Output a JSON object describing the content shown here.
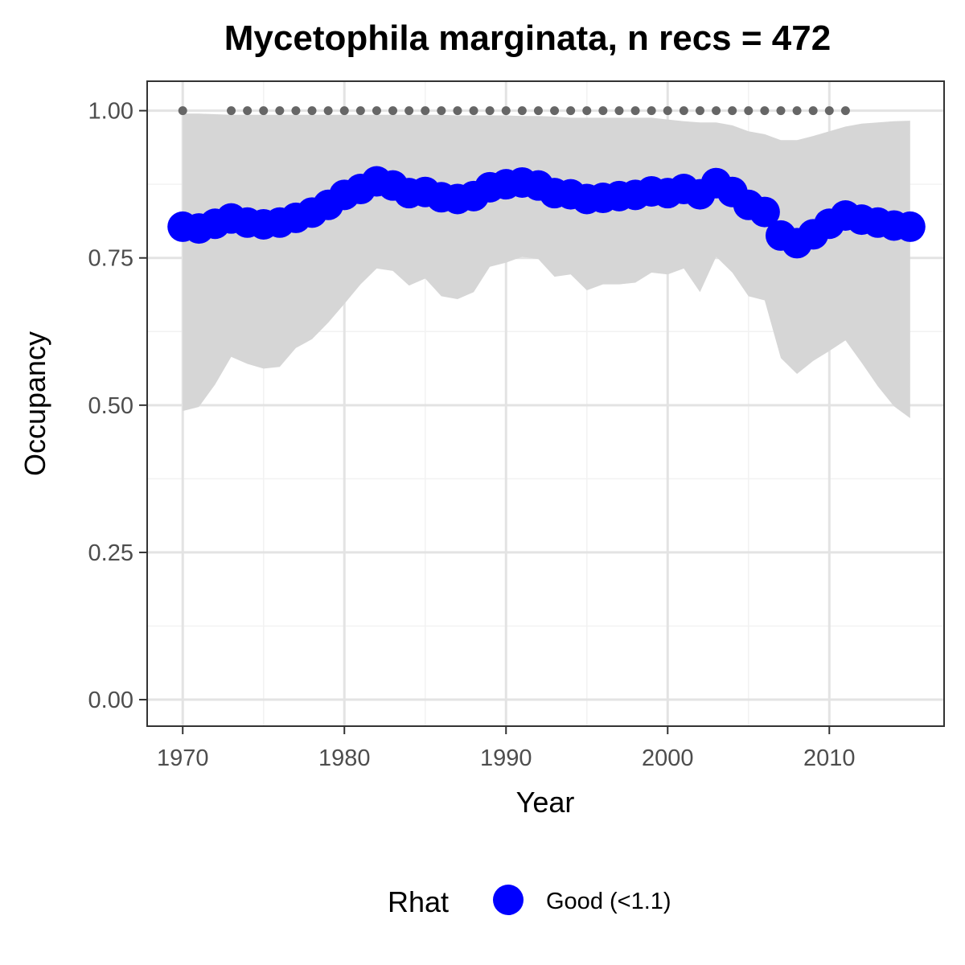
{
  "chart_data": {
    "type": "line",
    "title": "Mycetophila marginata, n recs = 472",
    "xlabel": "Year",
    "ylabel": "Occupancy",
    "xlim": [
      1967.8,
      2017.1
    ],
    "ylim": [
      -0.045,
      1.05
    ],
    "x_ticks": [
      1970,
      1980,
      1990,
      2000,
      2010
    ],
    "x_tick_labels": [
      "1970",
      "1980",
      "1990",
      "2000",
      "2010"
    ],
    "y_ticks": [
      0,
      0.25,
      0.5,
      0.75,
      1.0
    ],
    "y_tick_labels": [
      "0.00",
      "0.25",
      "0.50",
      "0.75",
      "1.00"
    ],
    "grid": true,
    "colors": {
      "series": "#0000ff",
      "ribbon": "#d6d6d6",
      "record_dots": "#666666",
      "grid_major": "#e3e3e3",
      "grid_minor": "#f2f2f2",
      "panel_border": "#333333"
    },
    "series": [
      {
        "x": [
          1970,
          1971,
          1972,
          1973,
          1974,
          1975,
          1976,
          1977,
          1978,
          1979,
          1980,
          1981,
          1982,
          1983,
          1984,
          1985,
          1986,
          1987,
          1988,
          1989,
          1990,
          1991,
          1992,
          1993,
          1994,
          1995,
          1996,
          1997,
          1998,
          1999,
          2000,
          2001,
          2002,
          2003,
          2004,
          2005,
          2006,
          2007,
          2008,
          2009,
          2010,
          2011,
          2012,
          2013,
          2014,
          2015
        ],
        "values": [
          0.803,
          0.8,
          0.808,
          0.817,
          0.81,
          0.807,
          0.81,
          0.818,
          0.827,
          0.84,
          0.857,
          0.867,
          0.88,
          0.873,
          0.86,
          0.862,
          0.853,
          0.85,
          0.855,
          0.87,
          0.875,
          0.878,
          0.873,
          0.86,
          0.858,
          0.85,
          0.852,
          0.855,
          0.857,
          0.863,
          0.86,
          0.867,
          0.858,
          0.877,
          0.862,
          0.84,
          0.828,
          0.788,
          0.775,
          0.79,
          0.808,
          0.822,
          0.815,
          0.81,
          0.805,
          0.803
        ]
      }
    ],
    "ribbon": {
      "x": [
        1970,
        1971,
        1972,
        1973,
        1974,
        1975,
        1976,
        1977,
        1978,
        1979,
        1980,
        1981,
        1982,
        1983,
        1984,
        1985,
        1986,
        1987,
        1988,
        1989,
        1990,
        1991,
        1992,
        1993,
        1994,
        1995,
        1996,
        1997,
        1998,
        1999,
        2000,
        2001,
        2002,
        2003,
        2004,
        2005,
        2006,
        2007,
        2008,
        2009,
        2010,
        2011,
        2012,
        2013,
        2014,
        2015
      ],
      "upper": [
        0.995,
        0.995,
        0.994,
        0.993,
        0.993,
        0.993,
        0.993,
        0.993,
        0.993,
        0.993,
        0.993,
        0.993,
        0.993,
        0.993,
        0.993,
        0.993,
        0.993,
        0.992,
        0.992,
        0.992,
        0.992,
        0.991,
        0.991,
        0.99,
        0.988,
        0.988,
        0.988,
        0.988,
        0.988,
        0.988,
        0.985,
        0.982,
        0.98,
        0.98,
        0.975,
        0.965,
        0.96,
        0.95,
        0.95,
        0.957,
        0.965,
        0.973,
        0.978,
        0.98,
        0.982,
        0.983
      ],
      "lower": [
        0.49,
        0.497,
        0.535,
        0.582,
        0.57,
        0.562,
        0.565,
        0.597,
        0.612,
        0.64,
        0.672,
        0.705,
        0.732,
        0.728,
        0.703,
        0.715,
        0.685,
        0.68,
        0.692,
        0.735,
        0.742,
        0.752,
        0.748,
        0.718,
        0.722,
        0.695,
        0.705,
        0.705,
        0.708,
        0.725,
        0.722,
        0.732,
        0.692,
        0.752,
        0.725,
        0.685,
        0.678,
        0.58,
        0.553,
        0.575,
        0.592,
        0.61,
        0.572,
        0.532,
        0.498,
        0.478
      ]
    },
    "record_years": [
      1970,
      1973,
      1974,
      1975,
      1976,
      1977,
      1978,
      1979,
      1980,
      1981,
      1982,
      1983,
      1984,
      1985,
      1986,
      1987,
      1988,
      1989,
      1990,
      1991,
      1992,
      1993,
      1994,
      1995,
      1996,
      1997,
      1998,
      1999,
      2000,
      2001,
      2002,
      2003,
      2004,
      2005,
      2006,
      2007,
      2008,
      2009,
      2010,
      2011
    ],
    "record_value": 1.0,
    "legend": {
      "title": "Rhat",
      "position": "bottom",
      "entries": [
        {
          "label": "Good (<1.1)",
          "color": "#0000ff"
        }
      ]
    }
  }
}
